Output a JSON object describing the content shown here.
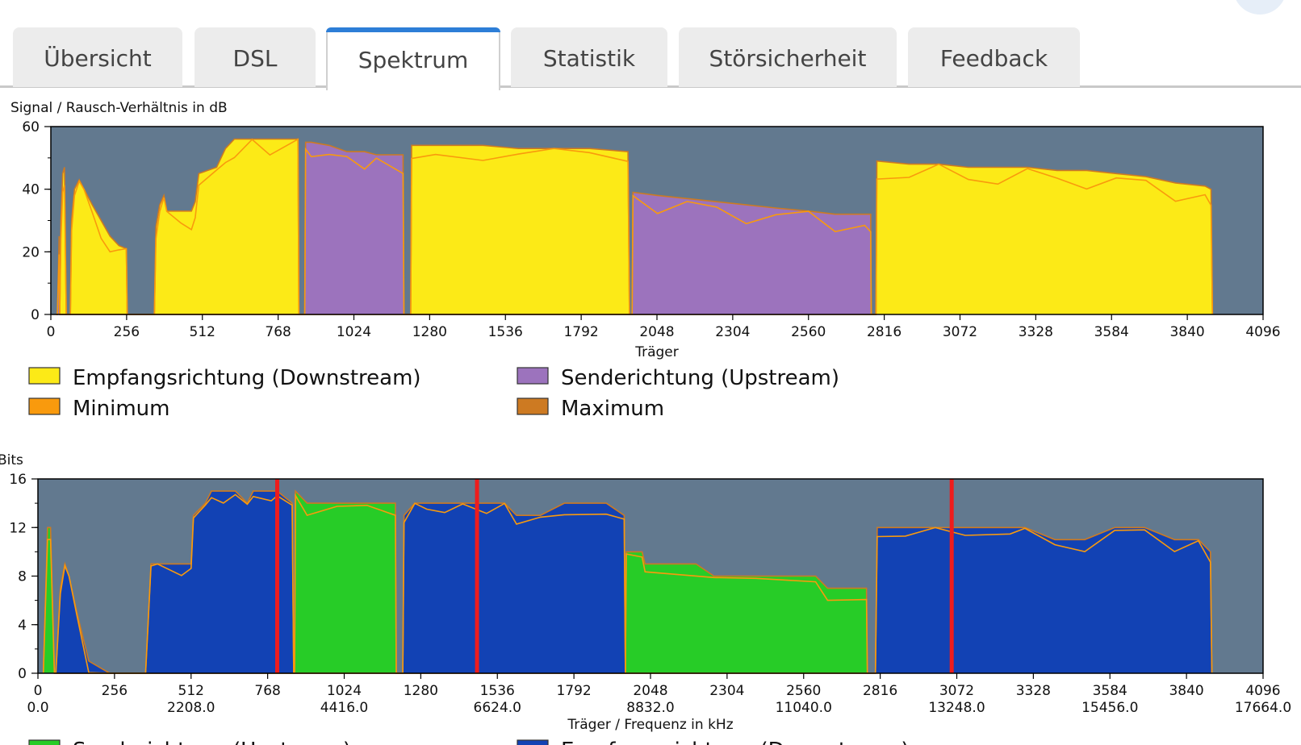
{
  "tabs": [
    {
      "label": "Übersicht",
      "active": false
    },
    {
      "label": "DSL",
      "active": false
    },
    {
      "label": "Spektrum",
      "active": true
    },
    {
      "label": "Statistik",
      "active": false
    },
    {
      "label": "Störsicherheit",
      "active": false
    },
    {
      "label": "Feedback",
      "active": false
    }
  ],
  "colors": {
    "plot_bg": "#62798f",
    "downstream": "#fcea17",
    "upstream": "#9c73bd",
    "minimum": "#f99a0d",
    "maximum": "#cd7a22",
    "bits_up": "#27cc27",
    "bits_down": "#1242b4",
    "marker": "#ee1c1c"
  },
  "chart_data": [
    {
      "type": "area",
      "title": "Signal / Rausch-Verhältnis in dB",
      "xlabel": "Träger",
      "ylabel": "Signal / Rausch-Verhältnis in dB",
      "xlim": [
        0,
        4096
      ],
      "ylim": [
        0,
        60
      ],
      "x_ticks": [
        0,
        256,
        512,
        768,
        1024,
        1280,
        1536,
        1792,
        2048,
        2304,
        2560,
        2816,
        3072,
        3328,
        3584,
        3840,
        4096
      ],
      "y_ticks": [
        0,
        20,
        40,
        60
      ],
      "legend": [
        {
          "label": "Empfangsrichtung (Downstream)",
          "color": "#fcea17"
        },
        {
          "label": "Senderichtung (Upstream)",
          "color": "#9c73bd"
        },
        {
          "label": "Minimum",
          "color": "#f99a0d"
        },
        {
          "label": "Maximum",
          "color": "#cd7a22"
        }
      ],
      "series": [
        {
          "name": "Empfangsrichtung (Downstream)",
          "points": [
            [
              30,
              0
            ],
            [
              34,
              30
            ],
            [
              40,
              45
            ],
            [
              46,
              47
            ],
            [
              52,
              0
            ],
            [
              66,
              0
            ],
            [
              70,
              30
            ],
            [
              80,
              40
            ],
            [
              96,
              43
            ],
            [
              112,
              40
            ],
            [
              140,
              35
            ],
            [
              170,
              30
            ],
            [
              200,
              25
            ],
            [
              230,
              22
            ],
            [
              255,
              21
            ],
            [
              258,
              0
            ],
            [
              350,
              0
            ],
            [
              355,
              28
            ],
            [
              368,
              35
            ],
            [
              382,
              38
            ],
            [
              392,
              33
            ],
            [
              440,
              33
            ],
            [
              475,
              33
            ],
            [
              488,
              36
            ],
            [
              500,
              45
            ],
            [
              560,
              47
            ],
            [
              590,
              53
            ],
            [
              620,
              56
            ],
            [
              680,
              56
            ],
            [
              740,
              56
            ],
            [
              835,
              56
            ],
            [
              838,
              0
            ],
            [
              1216,
              0
            ],
            [
              1219,
              54
            ],
            [
              1300,
              54
            ],
            [
              1460,
              54
            ],
            [
              1580,
              53
            ],
            [
              1700,
              53
            ],
            [
              1820,
              53
            ],
            [
              1950,
              52
            ],
            [
              1955,
              0
            ],
            [
              2788,
              0
            ],
            [
              2791,
              49
            ],
            [
              2900,
              48
            ],
            [
              3000,
              48
            ],
            [
              3100,
              47
            ],
            [
              3200,
              47
            ],
            [
              3300,
              47
            ],
            [
              3400,
              46
            ],
            [
              3500,
              46
            ],
            [
              3600,
              45
            ],
            [
              3700,
              44
            ],
            [
              3800,
              42
            ],
            [
              3900,
              41
            ],
            [
              3920,
              40
            ],
            [
              3925,
              0
            ]
          ]
        },
        {
          "name": "Senderichtung (Upstream)",
          "points": [
            [
              18,
              0
            ],
            [
              22,
              0
            ],
            [
              28,
              25
            ],
            [
              30,
              0
            ],
            [
              858,
              0
            ],
            [
              861,
              55
            ],
            [
              880,
              55
            ],
            [
              940,
              54
            ],
            [
              1000,
              52
            ],
            [
              1060,
              52
            ],
            [
              1100,
              51
            ],
            [
              1190,
              51
            ],
            [
              1193,
              0
            ],
            [
              1964,
              0
            ],
            [
              1967,
              39
            ],
            [
              2050,
              38
            ],
            [
              2150,
              37
            ],
            [
              2250,
              36
            ],
            [
              2350,
              35
            ],
            [
              2450,
              34
            ],
            [
              2560,
              33
            ],
            [
              2650,
              32
            ],
            [
              2750,
              32
            ],
            [
              2770,
              32
            ],
            [
              2772,
              0
            ]
          ]
        }
      ]
    },
    {
      "type": "area",
      "title": "Bits",
      "xlabel": "Träger / Frequenz in kHz",
      "ylabel": "Bits",
      "xlim": [
        0,
        4096
      ],
      "ylim": [
        0,
        16
      ],
      "x_ticks": [
        0,
        256,
        512,
        768,
        1024,
        1280,
        1536,
        1792,
        2048,
        2304,
        2560,
        2816,
        3072,
        3328,
        3584,
        3840,
        4096
      ],
      "x_ticks_khz": [
        "0.0",
        "2208.0",
        "4416.0",
        "6624.0",
        "8832.0",
        "11040.0",
        "13248.0",
        "15456.0",
        "17664.0"
      ],
      "y_ticks": [
        0,
        4,
        8,
        12,
        16
      ],
      "legend": [
        {
          "label": "Senderichtung (Upstream)",
          "color": "#27cc27"
        },
        {
          "label": "Empfangsrichtung (Downstream)",
          "color": "#1242b4"
        }
      ],
      "markers": [
        800,
        1468,
        3055
      ],
      "series": [
        {
          "name": "Senderichtung (Upstream)",
          "points": [
            [
              18,
              0
            ],
            [
              32,
              12
            ],
            [
              42,
              12
            ],
            [
              55,
              0
            ],
            [
              858,
              0
            ],
            [
              861,
              15
            ],
            [
              900,
              14
            ],
            [
              1000,
              14
            ],
            [
              1100,
              14
            ],
            [
              1195,
              14
            ],
            [
              1198,
              0
            ],
            [
              1964,
              0
            ],
            [
              1967,
              10
            ],
            [
              2020,
              10
            ],
            [
              2030,
              9
            ],
            [
              2200,
              9
            ],
            [
              2260,
              8
            ],
            [
              2400,
              8
            ],
            [
              2600,
              8
            ],
            [
              2640,
              7
            ],
            [
              2770,
              7
            ],
            [
              2773,
              0
            ]
          ]
        },
        {
          "name": "Empfangsrichtung (Downstream)",
          "points": [
            [
              60,
              0
            ],
            [
              75,
              7
            ],
            [
              90,
              9
            ],
            [
              104,
              8
            ],
            [
              130,
              5
            ],
            [
              170,
              1
            ],
            [
              240,
              0
            ],
            [
              360,
              0
            ],
            [
              378,
              9
            ],
            [
              400,
              9
            ],
            [
              480,
              9
            ],
            [
              512,
              9
            ],
            [
              520,
              13
            ],
            [
              560,
              14
            ],
            [
              580,
              15
            ],
            [
              620,
              15
            ],
            [
              660,
              15
            ],
            [
              700,
              14
            ],
            [
              720,
              15
            ],
            [
              780,
              15
            ],
            [
              800,
              15
            ],
            [
              850,
              14
            ],
            [
              855,
              0
            ],
            [
              1220,
              0
            ],
            [
              1224,
              13
            ],
            [
              1260,
              14
            ],
            [
              1300,
              14
            ],
            [
              1360,
              14
            ],
            [
              1420,
              14
            ],
            [
              1500,
              14
            ],
            [
              1560,
              14
            ],
            [
              1600,
              13
            ],
            [
              1680,
              13
            ],
            [
              1760,
              14
            ],
            [
              1900,
              14
            ],
            [
              1960,
              13
            ],
            [
              1964,
              0
            ],
            [
              2800,
              0
            ],
            [
              2806,
              12
            ],
            [
              2900,
              12
            ],
            [
              3000,
              12
            ],
            [
              3100,
              12
            ],
            [
              3250,
              12
            ],
            [
              3300,
              12
            ],
            [
              3400,
              11
            ],
            [
              3500,
              11
            ],
            [
              3600,
              12
            ],
            [
              3700,
              12
            ],
            [
              3800,
              11
            ],
            [
              3880,
              11
            ],
            [
              3920,
              10
            ],
            [
              3925,
              0
            ]
          ]
        }
      ]
    }
  ]
}
